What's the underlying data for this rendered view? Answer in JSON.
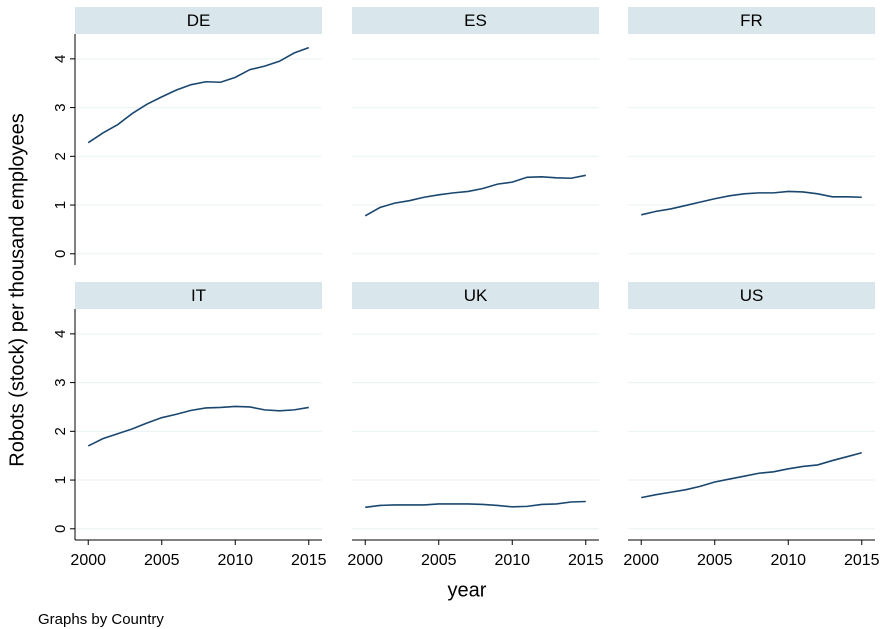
{
  "chart_data": {
    "type": "line",
    "color": "#1a476f",
    "grid": true,
    "x_label": "year",
    "y_label": "Robots (stock) per thousand employees",
    "note": "Graphs by Country",
    "x": [
      2000,
      2001,
      2002,
      2003,
      2004,
      2005,
      2006,
      2007,
      2008,
      2009,
      2010,
      2011,
      2012,
      2013,
      2014,
      2015
    ],
    "xlim": [
      1999.1,
      2015.9
    ],
    "xticks": [
      2000,
      2005,
      2010,
      2015
    ],
    "ylim": [
      -0.23,
      4.51
    ],
    "yticks": [
      0,
      1,
      2,
      3,
      4
    ],
    "facets": [
      {
        "title": "DE",
        "values": [
          2.28,
          2.48,
          2.65,
          2.88,
          3.07,
          3.22,
          3.36,
          3.47,
          3.53,
          3.52,
          3.62,
          3.78,
          3.85,
          3.95,
          4.12,
          4.23
        ]
      },
      {
        "title": "ES",
        "values": [
          0.78,
          0.95,
          1.04,
          1.09,
          1.16,
          1.21,
          1.25,
          1.28,
          1.34,
          1.43,
          1.47,
          1.57,
          1.58,
          1.56,
          1.55,
          1.61
        ]
      },
      {
        "title": "FR",
        "values": [
          0.8,
          0.87,
          0.92,
          0.99,
          1.06,
          1.13,
          1.19,
          1.23,
          1.25,
          1.25,
          1.28,
          1.27,
          1.23,
          1.17,
          1.17,
          1.16
        ]
      },
      {
        "title": "IT",
        "values": [
          1.7,
          1.85,
          1.95,
          2.05,
          2.17,
          2.28,
          2.35,
          2.43,
          2.48,
          2.49,
          2.51,
          2.5,
          2.44,
          2.42,
          2.44,
          2.49
        ]
      },
      {
        "title": "UK",
        "values": [
          0.44,
          0.48,
          0.49,
          0.49,
          0.49,
          0.51,
          0.51,
          0.51,
          0.5,
          0.48,
          0.45,
          0.46,
          0.5,
          0.51,
          0.55,
          0.56
        ]
      },
      {
        "title": "US",
        "values": [
          0.64,
          0.7,
          0.75,
          0.8,
          0.87,
          0.96,
          1.02,
          1.08,
          1.14,
          1.17,
          1.23,
          1.28,
          1.31,
          1.4,
          1.48,
          1.56
        ]
      }
    ]
  }
}
